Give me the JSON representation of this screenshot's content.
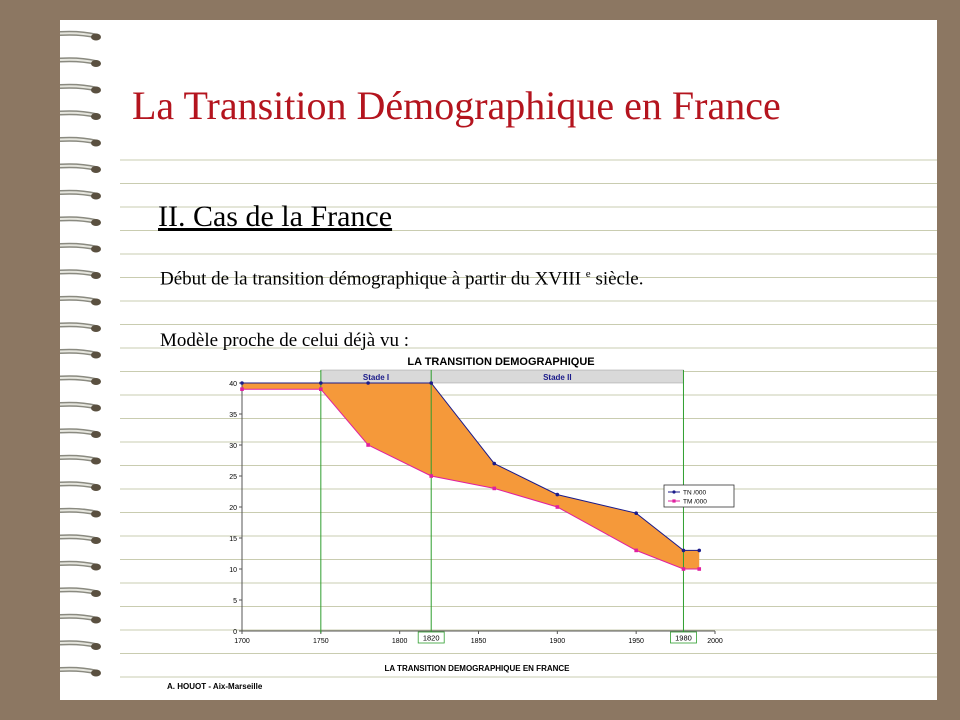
{
  "slide": {
    "title": "La Transition Démographique en France",
    "subtitle": "II. Cas de la France",
    "line1_main": "Début de la transition démographique à partir du XVIII",
    "line1_sup": "e",
    "line1_end": " siècle.",
    "line2": "Modèle proche de celui déjà vu :"
  },
  "chart_data": {
    "type": "line",
    "title": "LA TRANSITION DEMOGRAPHIQUE",
    "caption": "LA TRANSITION DEMOGRAPHIQUE EN FRANCE",
    "credit": "A. HOUOT - Aix-Marseille",
    "xlim": [
      1700,
      2000
    ],
    "ylim": [
      0,
      40
    ],
    "x_ticks": [
      1700,
      1750,
      1800,
      1850,
      1900,
      1950,
      2000
    ],
    "y_ticks": [
      0,
      5,
      10,
      15,
      20,
      25,
      30,
      35,
      40
    ],
    "stages": [
      {
        "label": "Stade I",
        "from": 1750,
        "to": 1820
      },
      {
        "label": "Stade II",
        "from": 1820,
        "to": 1980
      }
    ],
    "boundary_labels": [
      "1820",
      "1980"
    ],
    "series": [
      {
        "name": "TN /000",
        "color": "#1b1b8a",
        "x": [
          1700,
          1750,
          1780,
          1820,
          1860,
          1900,
          1950,
          1980,
          1990
        ],
        "y": [
          40,
          40,
          40,
          40,
          27,
          22,
          19,
          13,
          13
        ]
      },
      {
        "name": "TM /000",
        "color": "#e020a0",
        "x": [
          1700,
          1750,
          1780,
          1820,
          1860,
          1900,
          1950,
          1980,
          1990
        ],
        "y": [
          39,
          39,
          30,
          25,
          23,
          20,
          13,
          10,
          10
        ]
      }
    ],
    "fill_color": "#f5993a",
    "stage_color": "#2e9e2e",
    "grid": false,
    "legend_position": "right"
  }
}
